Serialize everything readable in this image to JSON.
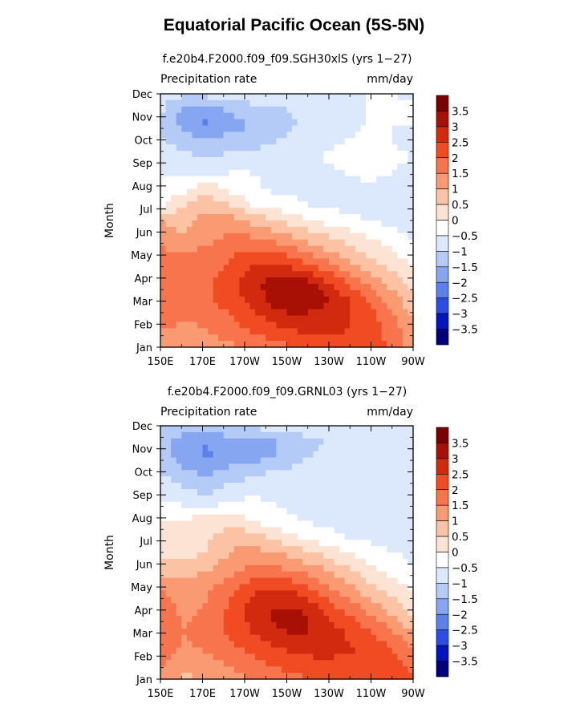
{
  "title": "Equatorial Pacific Ocean (5S-5N)",
  "colors": [
    "#00007f",
    "#0015bf",
    "#2a4de6",
    "#5a80ec",
    "#86a6f2",
    "#b4cbf7",
    "#dce8fb",
    "#ffffff",
    "#fde3d3",
    "#fcc2a4",
    "#fa9a73",
    "#f7744d",
    "#f04b22",
    "#d22a0f",
    "#a81007",
    "#7a0000"
  ],
  "chart_data": [
    {
      "type": "heatmap",
      "title": "f.e20b4.F2000.f09_f09.SGH30xlS (yrs 1−27)",
      "left_label": "Precipitation rate",
      "right_label": "mm/day",
      "ylabel": "Month",
      "x_ticks": [
        "150E",
        "170E",
        "170W",
        "150W",
        "130W",
        "110W",
        "90W"
      ],
      "y_ticks": [
        "Jan",
        "Feb",
        "Mar",
        "Apr",
        "May",
        "Jun",
        "Jul",
        "Aug",
        "Sep",
        "Oct",
        "Nov",
        "Dec"
      ],
      "colorbar_labels": [
        "3.5",
        "3",
        "2.5",
        "2",
        "1.5",
        "1",
        "0.5",
        "0",
        "−0.5",
        "−1",
        "−1.5",
        "−2",
        "−2.5",
        "−3",
        "−3.5"
      ],
      "z": [
        [
          -0.8,
          -0.9,
          -0.8,
          -0.6,
          -0.5,
          -0.6,
          -0.7,
          -0.6,
          -0.5,
          -0.5,
          -0.5,
          -0.6
        ],
        [
          -0.9,
          -1.6,
          -1.8,
          -1.4,
          -1.3,
          -1.1,
          -0.9,
          -0.9,
          -0.6,
          -0.5,
          -0.4,
          -0.4
        ],
        [
          -1.1,
          -1.7,
          -2.1,
          -1.7,
          -1.5,
          -1.2,
          -1.0,
          -0.9,
          -0.6,
          -0.5,
          -0.5,
          -0.5
        ],
        [
          -0.9,
          -1.2,
          -1.4,
          -1.3,
          -1.2,
          -1.0,
          -0.8,
          -0.6,
          -0.5,
          -0.4,
          -0.5,
          -0.6
        ],
        [
          -0.6,
          -0.9,
          -1.0,
          -0.9,
          -0.8,
          -0.7,
          -0.6,
          -0.5,
          -0.4,
          -0.3,
          -0.4,
          -0.5
        ],
        [
          -0.5,
          -0.6,
          -0.6,
          -0.5,
          -0.5,
          -0.6,
          -0.6,
          -0.6,
          -0.5,
          -0.4,
          -0.5,
          -0.6
        ],
        [
          -0.3,
          -0.2,
          0.4,
          -0.1,
          -0.4,
          -0.6,
          -0.7,
          -0.8,
          -0.7,
          -0.6,
          -0.6,
          -0.7
        ],
        [
          -0.1,
          0.4,
          0.8,
          0.5,
          0.0,
          -0.2,
          -0.4,
          -0.6,
          -0.7,
          -0.7,
          -0.8,
          -0.8
        ],
        [
          1.0,
          0.8,
          1.2,
          1.3,
          0.8,
          0.5,
          0.2,
          -0.1,
          -0.3,
          -0.5,
          -0.6,
          -0.8
        ],
        [
          1.2,
          1.0,
          1.3,
          1.6,
          1.5,
          1.2,
          0.9,
          0.6,
          0.3,
          0.0,
          -0.3,
          -0.6
        ],
        [
          1.6,
          1.5,
          1.6,
          1.9,
          2.1,
          2.0,
          1.6,
          1.2,
          0.8,
          0.4,
          0.1,
          -0.3
        ],
        [
          1.9,
          1.7,
          1.8,
          2.1,
          2.6,
          2.8,
          2.4,
          1.9,
          1.4,
          0.9,
          0.4,
          0.0
        ],
        [
          2.0,
          1.8,
          1.9,
          2.3,
          2.8,
          3.3,
          3.4,
          2.8,
          2.1,
          1.5,
          0.9,
          0.3
        ],
        [
          2.0,
          1.8,
          1.9,
          2.2,
          2.7,
          3.2,
          3.5,
          3.2,
          2.6,
          2.0,
          1.3,
          0.6
        ],
        [
          1.8,
          1.6,
          1.7,
          2.0,
          2.4,
          2.8,
          3.0,
          2.8,
          2.6,
          2.3,
          1.6,
          0.9
        ],
        [
          1.5,
          1.3,
          1.5,
          1.7,
          2.0,
          2.3,
          2.5,
          2.6,
          2.5,
          2.4,
          1.8,
          1.1
        ],
        [
          1.2,
          1.0,
          1.2,
          1.4,
          1.6,
          1.8,
          2.0,
          2.2,
          2.3,
          2.4,
          1.9,
          1.2
        ]
      ]
    },
    {
      "type": "heatmap",
      "title": "f.e20b4.F2000.f09_f09.GRNL03 (yrs 1−27)",
      "left_label": "Precipitation rate",
      "right_label": "mm/day",
      "ylabel": "Month",
      "x_ticks": [
        "150E",
        "170E",
        "170W",
        "150W",
        "130W",
        "110W",
        "90W"
      ],
      "y_ticks": [
        "Jan",
        "Feb",
        "Mar",
        "Apr",
        "May",
        "Jun",
        "Jul",
        "Aug",
        "Sep",
        "Oct",
        "Nov",
        "Dec"
      ],
      "colorbar_labels": [
        "3.5",
        "3",
        "2.5",
        "2",
        "1.5",
        "1",
        "0.5",
        "0",
        "−0.5",
        "−1",
        "−1.5",
        "−2",
        "−2.5",
        "−3",
        "−3.5"
      ],
      "z": [
        [
          -0.9,
          -1.1,
          -1.2,
          -1.1,
          -0.9,
          -0.8,
          -0.8,
          -0.7,
          -0.6,
          -0.6,
          -0.6,
          -0.6
        ],
        [
          -1.3,
          -1.8,
          -2.0,
          -1.7,
          -1.6,
          -1.5,
          -1.2,
          -1.0,
          -0.8,
          -0.7,
          -0.7,
          -0.7
        ],
        [
          -1.2,
          -1.7,
          -2.1,
          -1.8,
          -1.7,
          -1.5,
          -1.1,
          -0.9,
          -0.8,
          -0.7,
          -0.7,
          -0.7
        ],
        [
          -1.0,
          -1.4,
          -1.6,
          -1.3,
          -1.1,
          -0.9,
          -0.8,
          -0.8,
          -0.7,
          -0.7,
          -0.7,
          -0.7
        ],
        [
          -0.6,
          -0.9,
          -1.2,
          -0.8,
          -0.7,
          -0.7,
          -0.7,
          -0.7,
          -0.7,
          -0.7,
          -0.7,
          -0.7
        ],
        [
          -0.4,
          -0.5,
          -0.6,
          -0.4,
          -0.3,
          -0.5,
          -0.6,
          -0.7,
          -0.7,
          -0.7,
          -0.7,
          -0.7
        ],
        [
          0.0,
          0.1,
          0.2,
          0.3,
          0.0,
          -0.3,
          -0.5,
          -0.6,
          -0.7,
          -0.7,
          -0.7,
          -0.7
        ],
        [
          0.1,
          0.2,
          0.4,
          0.8,
          0.7,
          0.3,
          0.0,
          -0.3,
          -0.5,
          -0.6,
          -0.6,
          -0.7
        ],
        [
          0.3,
          0.2,
          0.5,
          1.0,
          1.2,
          1.0,
          0.7,
          0.4,
          0.0,
          -0.3,
          -0.5,
          -0.6
        ],
        [
          0.8,
          0.7,
          0.9,
          1.3,
          1.6,
          1.6,
          1.3,
          1.0,
          0.6,
          0.2,
          -0.2,
          -0.5
        ],
        [
          1.3,
          1.1,
          1.3,
          1.7,
          2.2,
          2.4,
          2.1,
          1.6,
          1.1,
          0.6,
          0.2,
          -0.2
        ],
        [
          1.7,
          1.3,
          1.5,
          2.0,
          2.6,
          2.9,
          2.8,
          2.2,
          1.6,
          1.1,
          0.6,
          0.1
        ],
        [
          1.9,
          1.4,
          1.6,
          2.1,
          2.7,
          3.1,
          3.2,
          2.7,
          2.1,
          1.6,
          1.0,
          0.5
        ],
        [
          2.0,
          1.5,
          1.7,
          2.1,
          2.5,
          2.9,
          3.1,
          2.9,
          2.5,
          2.1,
          1.6,
          1.0
        ],
        [
          2.0,
          1.4,
          1.6,
          1.9,
          2.2,
          2.5,
          2.7,
          2.7,
          2.6,
          2.4,
          2.0,
          1.5
        ],
        [
          1.6,
          1.2,
          1.3,
          1.6,
          1.8,
          2.1,
          2.3,
          2.4,
          2.4,
          2.5,
          2.3,
          1.8
        ],
        [
          1.3,
          0.9,
          1.0,
          1.3,
          1.5,
          1.7,
          1.9,
          2.1,
          2.2,
          2.5,
          2.4,
          2.0
        ]
      ]
    }
  ]
}
